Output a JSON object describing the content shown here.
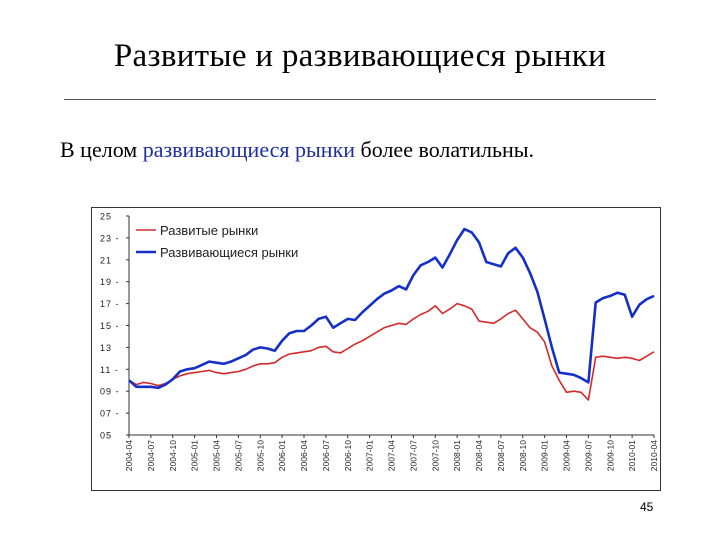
{
  "slide": {
    "title": "Развитые и развивающиеся рынки",
    "text_before": "В целом ",
    "text_highlight": "развивающиеся рынки",
    "text_after": " более волатильны.",
    "page_number": "45",
    "highlight_color": "#1f2fa3"
  },
  "chart_data": {
    "type": "line",
    "x": [
      "2004-04",
      "2004-05",
      "2004-06",
      "2004-07",
      "2004-08",
      "2004-09",
      "2004-10",
      "2004-11",
      "2004-12",
      "2005-01",
      "2005-02",
      "2005-03",
      "2005-04",
      "2005-05",
      "2005-06",
      "2005-07",
      "2005-08",
      "2005-09",
      "2005-10",
      "2005-11",
      "2005-12",
      "2006-01",
      "2006-02",
      "2006-03",
      "2006-04",
      "2006-05",
      "2006-06",
      "2006-07",
      "2006-08",
      "2006-09",
      "2006-10",
      "2006-11",
      "2006-12",
      "2007-01",
      "2007-02",
      "2007-03",
      "2007-04",
      "2007-05",
      "2007-06",
      "2007-07",
      "2007-08",
      "2007-09",
      "2007-10",
      "2007-11",
      "2007-12",
      "2008-01",
      "2008-02",
      "2008-03",
      "2008-04",
      "2008-05",
      "2008-06",
      "2008-07",
      "2008-08",
      "2008-09",
      "2008-10",
      "2008-11",
      "2008-12",
      "2009-01",
      "2009-02",
      "2009-03",
      "2009-04",
      "2009-05",
      "2009-06",
      "2009-07",
      "2009-08",
      "2009-09",
      "2009-10",
      "2009-11",
      "2009-12",
      "2010-01",
      "2010-02",
      "2010-03",
      "2010-04"
    ],
    "x_tick_labels": [
      "2004-04",
      "2004-07",
      "2004-10",
      "2005-01",
      "2005-04",
      "2005-07",
      "2005-10",
      "2006-01",
      "2006-04",
      "2006-07",
      "2006-10",
      "2007-01",
      "2007-04",
      "2007-07",
      "2007-10",
      "2008-01",
      "2008-04",
      "2008-07",
      "2008-10",
      "2009-01",
      "2009-04",
      "2009-07",
      "2009-10",
      "2010-01",
      "2010-04"
    ],
    "y_tick_labels": [
      "05",
      "07 -",
      "09 -",
      "11 -",
      "13",
      "15 -",
      "17 -",
      "19 -",
      "21",
      "23 -",
      "25"
    ],
    "y_ticks": [
      5,
      7,
      9,
      11,
      13,
      15,
      17,
      19,
      21,
      23,
      25
    ],
    "ylim": [
      5,
      25
    ],
    "grid": false,
    "legend_position": "top-left",
    "series": [
      {
        "name": "Развитые рынки",
        "color": "#d42a2a",
        "values": [
          10.0,
          9.6,
          9.8,
          9.7,
          9.5,
          9.7,
          10.1,
          10.4,
          10.6,
          10.7,
          10.8,
          10.9,
          10.7,
          10.6,
          10.7,
          10.8,
          11.0,
          11.3,
          11.5,
          11.5,
          11.6,
          12.1,
          12.4,
          12.5,
          12.6,
          12.7,
          13.0,
          13.1,
          12.6,
          12.5,
          12.9,
          13.3,
          13.6,
          14.0,
          14.4,
          14.8,
          15.0,
          15.2,
          15.1,
          15.6,
          16.0,
          16.3,
          16.8,
          16.1,
          16.5,
          17.0,
          16.8,
          16.5,
          15.4,
          15.3,
          15.2,
          15.6,
          16.1,
          16.4,
          15.6,
          14.8,
          14.4,
          13.5,
          11.3,
          10.0,
          8.9,
          9.0,
          8.9,
          8.2,
          8.0,
          8.7,
          9.5,
          9.7,
          10.1,
          10.4,
          10.6,
          11.2,
          11.8
        ],
        "values_tail": [
          12.1,
          12.2,
          12.1,
          12.0,
          12.1,
          12.0,
          11.8,
          12.2,
          12.6
        ]
      },
      {
        "name": "Развивающиеся рынки",
        "color": "#1530c8",
        "values": [
          10.0,
          9.4,
          9.4,
          9.4,
          9.3,
          9.6,
          10.1,
          10.8,
          11.0,
          11.1,
          11.4,
          11.7,
          11.6,
          11.5,
          11.7,
          12.0,
          12.3,
          12.8,
          13.0,
          12.9,
          12.7,
          13.6,
          14.3,
          14.5,
          14.5,
          15.0,
          15.6,
          15.8,
          14.8,
          15.2,
          15.6,
          15.5,
          16.2,
          16.8,
          17.4,
          17.9,
          18.2,
          18.6,
          18.3,
          19.6,
          20.5,
          20.8,
          21.2,
          20.3,
          21.5,
          22.8,
          23.8,
          23.5,
          22.6,
          20.8,
          20.6,
          20.4,
          21.6,
          22.1,
          21.2,
          19.8,
          18.1,
          15.6,
          13.0,
          10.7,
          10.6,
          10.5,
          10.2,
          9.8,
          9.5,
          10.2,
          11.8,
          13.4,
          13.8,
          14.3,
          14.9,
          15.8,
          16.6
        ],
        "values_tail": [
          17.1,
          17.5,
          17.7,
          18.0,
          17.8,
          15.8,
          16.9,
          17.4,
          17.7
        ]
      }
    ]
  }
}
